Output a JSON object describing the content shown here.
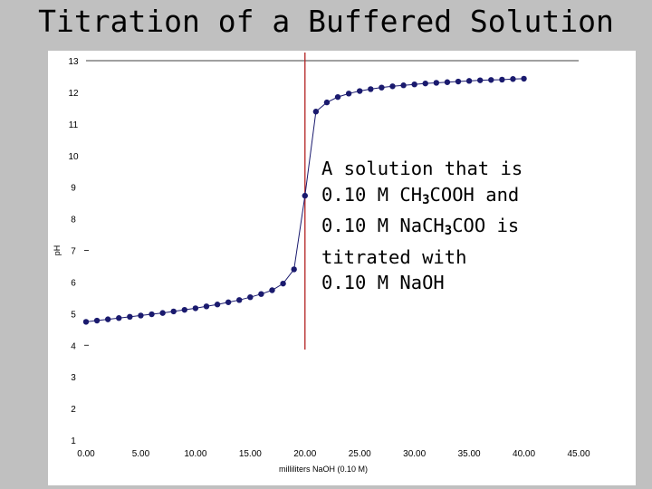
{
  "slide": {
    "title": "Titration of a Buffered Solution"
  },
  "annotation": {
    "lines": [
      [
        {
          "t": "A solution that is"
        }
      ],
      [
        {
          "t": "0.10 M CH"
        },
        {
          "t": "3",
          "sub": true
        },
        {
          "t": "COOH and"
        }
      ],
      [
        {
          "t": "0.10 M NaCH"
        },
        {
          "t": "3",
          "sub": true
        },
        {
          "t": "COO is"
        }
      ],
      [
        {
          "t": "titrated with"
        }
      ],
      [
        {
          "t": "0.10 M NaOH"
        }
      ]
    ]
  },
  "colors": {
    "background": "#c0c0c0",
    "plot_background": "#ffffff",
    "series": "#1a1a6e",
    "equivalence_line": "#b22222"
  },
  "chart_data": {
    "type": "line",
    "title": "",
    "xlabel": "milliliters NaOH (0.10 M)",
    "ylabel": "pH",
    "xlim": [
      0,
      45
    ],
    "ylim": [
      1,
      13
    ],
    "x_ticks": [
      "0.00",
      "5.00",
      "10.00",
      "15.00",
      "20.00",
      "25.00",
      "30.00",
      "35.00",
      "40.00",
      "45.00"
    ],
    "y_ticks": [
      "1",
      "2",
      "3",
      "4",
      "5",
      "6",
      "7",
      "8",
      "9",
      "10",
      "11",
      "12",
      "13"
    ],
    "grid": false,
    "legend": "none",
    "equivalence_volume": 20.0,
    "series": [
      {
        "x": [
          0,
          1,
          2,
          3,
          4,
          5,
          6,
          7,
          8,
          9,
          10,
          11,
          12,
          13,
          14,
          15,
          16,
          17,
          18,
          19,
          20,
          21,
          22,
          23,
          24,
          25,
          26,
          27,
          28,
          29,
          30,
          31,
          32,
          33,
          34,
          35,
          36,
          37,
          38,
          39,
          40
        ],
        "y": [
          4.74,
          4.78,
          4.82,
          4.86,
          4.9,
          4.94,
          4.98,
          5.02,
          5.07,
          5.12,
          5.17,
          5.23,
          5.29,
          5.36,
          5.43,
          5.52,
          5.62,
          5.74,
          5.95,
          6.4,
          8.73,
          11.39,
          11.68,
          11.85,
          11.96,
          12.04,
          12.1,
          12.15,
          12.19,
          12.22,
          12.25,
          12.28,
          12.3,
          12.32,
          12.34,
          12.36,
          12.38,
          12.39,
          12.4,
          12.42,
          12.43
        ]
      }
    ]
  }
}
